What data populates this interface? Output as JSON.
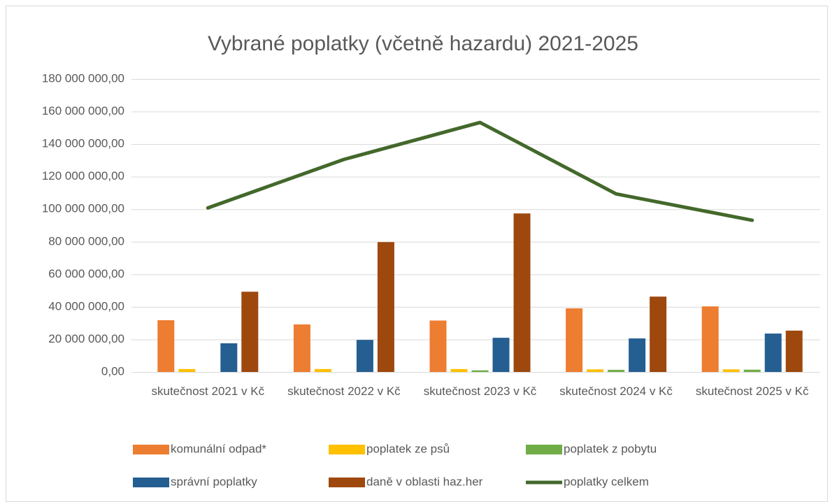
{
  "chart_data": {
    "type": "bar",
    "title": "Vybrané poplatky (včetně hazardu) 2021-2025",
    "categories": [
      "skutečnost 2021 v Kč",
      "skutečnost 2022 v Kč",
      "skutečnost 2023 v Kč",
      "skutečnost 2024 v Kč",
      "skutečnost 2025 v Kč"
    ],
    "series": [
      {
        "name": "komunální odpad*",
        "color": "#ed7d31",
        "values": [
          31800000,
          29200000,
          31600000,
          39100000,
          40300000
        ]
      },
      {
        "name": "poplatek ze psů",
        "color": "#ffc000",
        "values": [
          1800000,
          1800000,
          1800000,
          1600000,
          1600000
        ]
      },
      {
        "name": "poplatek z pobytu",
        "color": "#70ad47",
        "values": [
          0,
          0,
          1000000,
          1300000,
          1400000
        ]
      },
      {
        "name": "správní poplatky",
        "color": "#255e91",
        "values": [
          17600000,
          19700000,
          21000000,
          20600000,
          23600000
        ]
      },
      {
        "name": "daně v oblasti haz.her",
        "color": "#9e480e",
        "values": [
          49300000,
          79800000,
          97400000,
          46300000,
          25400000
        ]
      },
      {
        "name": "poplatky celkem",
        "color": "#43682b",
        "type": "line",
        "values": [
          100800000,
          130600000,
          153300000,
          109400000,
          93200000
        ]
      }
    ],
    "ylim": [
      0,
      180000000
    ],
    "yticks": [
      {
        "value": 0,
        "label": "0,00"
      },
      {
        "value": 20000000,
        "label": "20 000 000,00"
      },
      {
        "value": 40000000,
        "label": "40 000 000,00"
      },
      {
        "value": 60000000,
        "label": "60 000 000,00"
      },
      {
        "value": 80000000,
        "label": "80 000 000,00"
      },
      {
        "value": 100000000,
        "label": "100 000 000,00"
      },
      {
        "value": 120000000,
        "label": "120 000 000,00"
      },
      {
        "value": 140000000,
        "label": "140 000 000,00"
      },
      {
        "value": 160000000,
        "label": "160 000 000,00"
      },
      {
        "value": 180000000,
        "label": "180 000 000,00"
      }
    ],
    "grid": true,
    "legend": "bottom"
  }
}
